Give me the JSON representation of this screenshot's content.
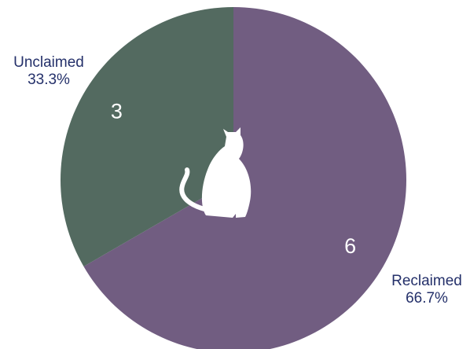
{
  "chart_data": {
    "type": "pie",
    "title": "",
    "slices": [
      {
        "label": "Reclaimed",
        "value": 6,
        "percent": "66.7%",
        "color": "#715d81"
      },
      {
        "label": "Unclaimed",
        "value": 3,
        "percent": "33.3%",
        "color": "#536a60"
      }
    ],
    "center_icon": "cat-silhouette-icon",
    "center_icon_color": "#ffffff",
    "value_label_color": "#ffffff",
    "outer_label_color": "#24306a"
  }
}
